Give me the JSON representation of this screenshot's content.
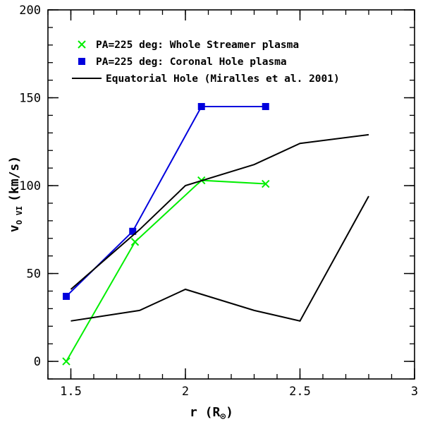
{
  "chart_data": {
    "type": "line",
    "title": "",
    "xlabel": "r (R",
    "xlabel_sub": "⊙",
    "xlabel_close": ")",
    "ylabel": "v",
    "ylabel_sub": "O VI",
    "ylabel_unit": "(km/s)",
    "xlim": [
      1.4,
      3.0
    ],
    "ylim": [
      -10,
      200
    ],
    "x_ticks": [
      1.5,
      2.0,
      2.5,
      3.0
    ],
    "x_tick_labels": [
      "1.5",
      "2",
      "2.5",
      "3"
    ],
    "y_ticks": [
      0,
      50,
      100,
      150,
      200
    ],
    "y_tick_labels": [
      "0",
      "50",
      "100",
      "150",
      "200"
    ],
    "x_minor_step": 0.1,
    "y_minor_step": 10,
    "legend_position": "top-left",
    "series": [
      {
        "name": "PA=225 deg: Whole Streamer plasma",
        "color": "#00ee00",
        "marker": "x",
        "x": [
          1.48,
          1.78,
          2.07,
          2.35
        ],
        "y": [
          0,
          68,
          103,
          101
        ]
      },
      {
        "name": "PA=225 deg: Coronal Hole plasma",
        "color": "#0000dd",
        "marker": "square",
        "x": [
          1.48,
          1.77,
          2.07,
          2.35
        ],
        "y": [
          37,
          74,
          145,
          145
        ]
      },
      {
        "name": "Equatorial Hole (Miralles et al. 2001)",
        "color": "#000000",
        "marker": "none",
        "x": [
          1.5,
          1.8,
          2.0,
          2.3,
          2.5,
          2.8
        ],
        "y": [
          41,
          75,
          100,
          112,
          124,
          129
        ]
      },
      {
        "name": "",
        "color": "#000000",
        "marker": "none",
        "x": [
          1.5,
          1.8,
          2.0,
          2.3,
          2.5,
          2.8
        ],
        "y": [
          23,
          29,
          41,
          29,
          23,
          94
        ]
      }
    ]
  }
}
